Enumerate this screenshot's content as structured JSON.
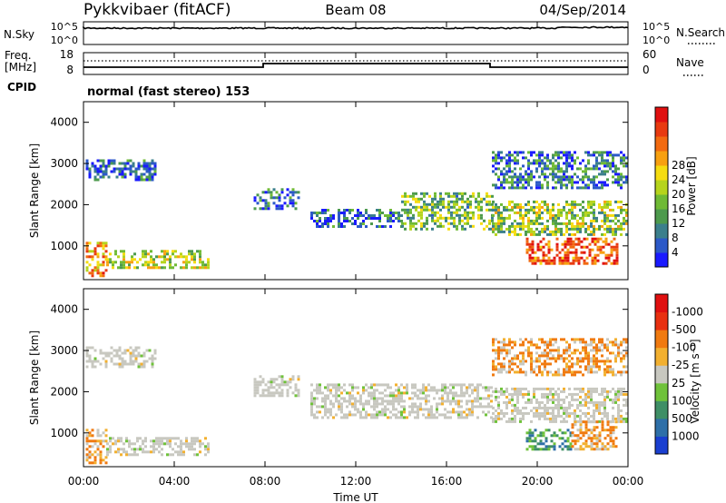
{
  "header": {
    "station": "Pykkvibaer (fitACF)",
    "beam": "Beam 08",
    "date": "04/Sep/2014"
  },
  "nsky_panel": {
    "left_label": "N.Sky",
    "left_ticks": [
      "10^5",
      "10^0"
    ],
    "right_ticks": [
      "10^5",
      "10^0"
    ],
    "right_label": "N.Search"
  },
  "freq_panel": {
    "left_label_1": "Freq.",
    "left_label_2": "[MHz]",
    "left_ticks": [
      "18",
      "8"
    ],
    "right_ticks": [
      "60",
      "0"
    ],
    "right_label": "Nave"
  },
  "cpid_label": "CPID",
  "cpid_text": "normal (fast stereo) 153",
  "time_axis": {
    "ticks": [
      "00:00",
      "04:00",
      "08:00",
      "12:00",
      "16:00",
      "20:00",
      "00:00"
    ],
    "label": "Time UT"
  },
  "chart_data": [
    {
      "type": "heatmap",
      "title": "",
      "xlabel": "Time UT",
      "ylabel": "Slant Range [km]",
      "x_range_hours": [
        0,
        24
      ],
      "ylim": [
        180,
        4500
      ],
      "y_ticks": [
        1000,
        2000,
        3000,
        4000
      ],
      "colorbar": {
        "label": "Power [dB]",
        "ticks": [
          "4",
          "8",
          "12",
          "16",
          "20",
          "24",
          "28"
        ],
        "colors": [
          "#1a1aff",
          "#2c59c8",
          "#3b7f8c",
          "#4d9a4d",
          "#6fba35",
          "#b6d41c",
          "#f5dc10",
          "#f7a010",
          "#f26a10",
          "#e83a10",
          "#e01010"
        ]
      },
      "regions": [
        {
          "t0": 0.1,
          "t1": 1.0,
          "r0": 300,
          "r1": 1100,
          "level": 0.7
        },
        {
          "t0": 1.0,
          "t1": 5.5,
          "r0": 500,
          "r1": 900,
          "level": 0.5
        },
        {
          "t0": 0.1,
          "t1": 3.2,
          "r0": 2600,
          "r1": 3100,
          "level": 0.15
        },
        {
          "t0": 7.5,
          "t1": 9.5,
          "r0": 1900,
          "r1": 2400,
          "level": 0.2
        },
        {
          "t0": 10.0,
          "t1": 14.0,
          "r0": 1500,
          "r1": 1900,
          "level": 0.2
        },
        {
          "t0": 14.0,
          "t1": 18.0,
          "r0": 1400,
          "r1": 2300,
          "level": 0.4
        },
        {
          "t0": 18.0,
          "t1": 24.0,
          "r0": 1300,
          "r1": 2100,
          "level": 0.45
        },
        {
          "t0": 18.0,
          "t1": 24.0,
          "r0": 2400,
          "r1": 3300,
          "level": 0.2
        },
        {
          "t0": 19.5,
          "t1": 23.5,
          "r0": 600,
          "r1": 1200,
          "level": 0.85
        }
      ]
    },
    {
      "type": "heatmap",
      "title": "",
      "xlabel": "Time UT",
      "ylabel": "Slant Range [km]",
      "x_range_hours": [
        0,
        24
      ],
      "ylim": [
        180,
        4500
      ],
      "y_ticks": [
        1000,
        2000,
        3000,
        4000
      ],
      "colorbar": {
        "label": "Velocity [m s⁻¹]",
        "ticks": [
          "1000",
          "500",
          "100",
          "25",
          "-25",
          "-100",
          "-500",
          "-1000"
        ],
        "colors": [
          "#1a3fd0",
          "#2e6fa8",
          "#3f8f66",
          "#6fc23a",
          "#c8c8c0",
          "#f2b030",
          "#f07a10",
          "#e83010",
          "#e01010"
        ]
      },
      "regions": [
        {
          "t0": 0.1,
          "t1": 1.0,
          "r0": 300,
          "r1": 1100,
          "kind": "orange"
        },
        {
          "t0": 1.0,
          "t1": 5.5,
          "r0": 500,
          "r1": 900,
          "kind": "gray"
        },
        {
          "t0": 0.1,
          "t1": 3.2,
          "r0": 2600,
          "r1": 3100,
          "kind": "gray"
        },
        {
          "t0": 7.5,
          "t1": 9.5,
          "r0": 1900,
          "r1": 2400,
          "kind": "gray"
        },
        {
          "t0": 10.0,
          "t1": 18.0,
          "r0": 1400,
          "r1": 2200,
          "kind": "gray"
        },
        {
          "t0": 18.0,
          "t1": 24.0,
          "r0": 1300,
          "r1": 2100,
          "kind": "gray"
        },
        {
          "t0": 18.0,
          "t1": 24.0,
          "r0": 2400,
          "r1": 3300,
          "kind": "orange"
        },
        {
          "t0": 19.5,
          "t1": 21.5,
          "r0": 600,
          "r1": 1100,
          "kind": "green"
        },
        {
          "t0": 21.5,
          "t1": 23.5,
          "r0": 600,
          "r1": 1300,
          "kind": "orange"
        }
      ]
    }
  ]
}
